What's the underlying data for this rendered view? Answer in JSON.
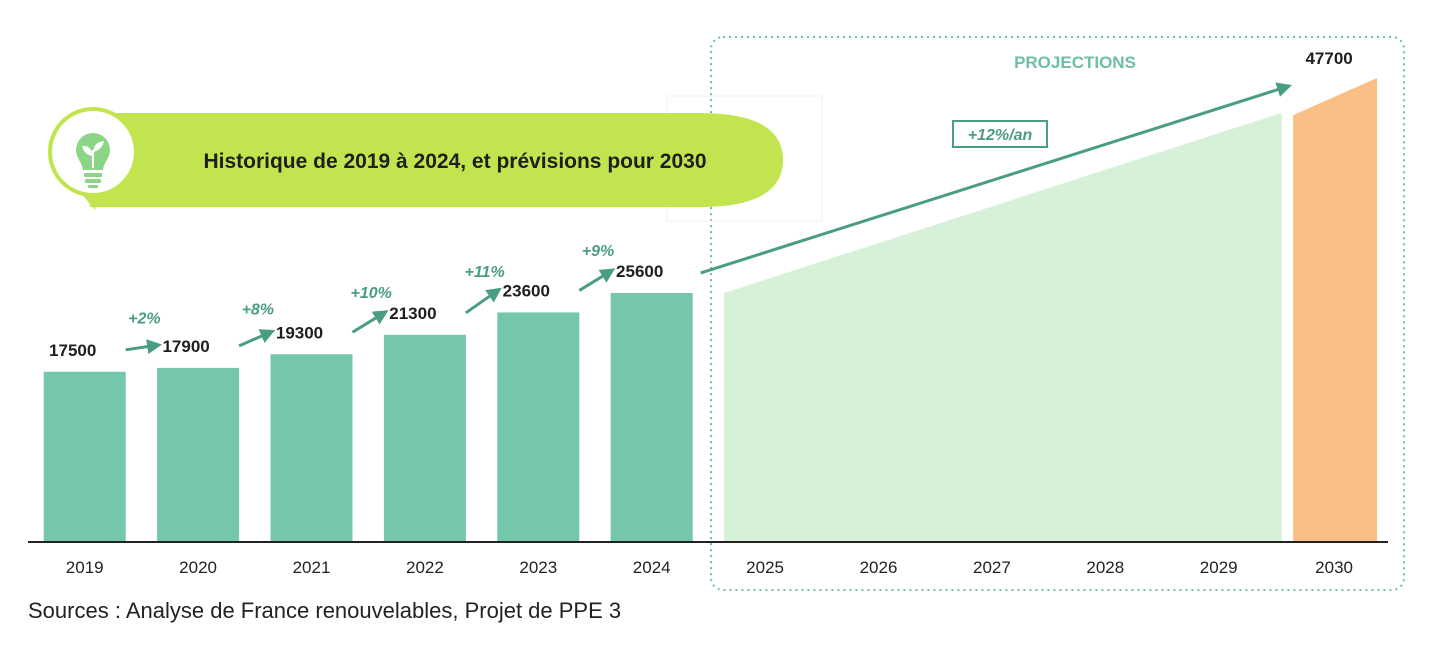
{
  "banner": {
    "title": "Historique de 2019 à 2024, et prévisions pour 2030",
    "icon": "lightbulb-leaf-icon"
  },
  "projections_label": "PROJECTIONS",
  "growth_rate_label": "+12%/an",
  "sources": "Sources : Analyse de France renouvelables, Projet de PPE 3",
  "colors": {
    "historic_bar": "#74c7aa",
    "projection_area": "#d7f1d8",
    "target_bar": "#f9bf86",
    "accent": "#4a9d80",
    "banner": "#c2e54f",
    "axis": "#222222"
  },
  "chart_data": {
    "type": "bar",
    "title": "Historique de 2019 à 2024, et prévisions pour 2030",
    "categories": [
      "2019",
      "2020",
      "2021",
      "2022",
      "2023",
      "2024",
      "2025",
      "2026",
      "2027",
      "2028",
      "2029",
      "2030"
    ],
    "series": [
      {
        "values": [
          17500,
          17900,
          19300,
          21300,
          23600,
          25600,
          null,
          null,
          null,
          null,
          null,
          47700
        ]
      }
    ],
    "data_labels": [
      "17500",
      "17900",
      "19300",
      "21300",
      "23600",
      "25600",
      "",
      "",
      "",
      "",
      "",
      "47700"
    ],
    "growth_labels": [
      "+2%",
      "+8%",
      "+10%",
      "+11%",
      "+9%"
    ],
    "projection": {
      "from": "2025",
      "to": "2029",
      "annual_growth": "+12%/an",
      "start_value": 25600,
      "end_value": 47700
    },
    "ylim": [
      0,
      50000
    ],
    "xlabel": "",
    "ylabel": "",
    "grid": false,
    "legend": "none"
  }
}
